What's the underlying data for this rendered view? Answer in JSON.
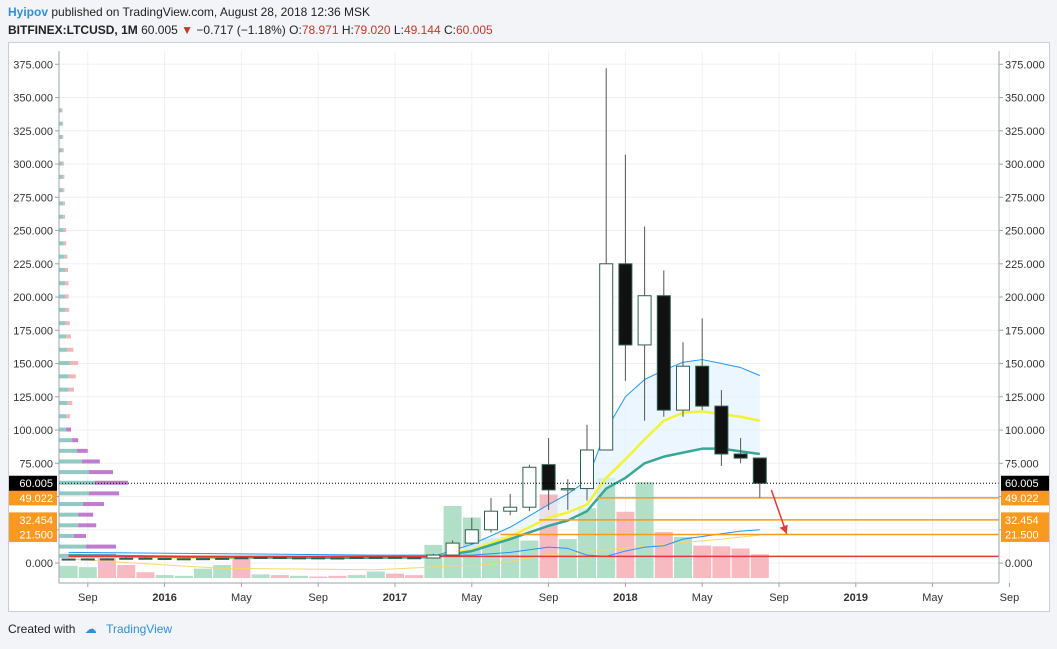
{
  "header": {
    "author": "Hyipov",
    "published_text": "published on TradingView.com, August 28, 2018 12:36 MSK",
    "symbol": "BITFINEX:LTCUSD, 1M",
    "last": "60.005",
    "change": "−0.717 (−1.18%)",
    "o_label": "O:",
    "o_value": "78.971",
    "h_label": "H:",
    "h_value": "79.020",
    "l_label": "L:",
    "l_value": "49.144",
    "c_label": "C:",
    "c_value": "60.005"
  },
  "footer": {
    "created_with": "Created with",
    "brand": "TradingView"
  },
  "colors": {
    "up_fill": "#ffffff",
    "down_fill": "#111111",
    "candle_stroke": "#2f5f4f",
    "vol_up": "#a8dcc1",
    "vol_down": "#f6b3ba",
    "ma_blue": "#2196f3",
    "ma_yellow": "#f2f23a",
    "ma_teal": "#3aa69a",
    "level_orange": "#f79a1f",
    "level_red": "#e53935",
    "arrow": "#e53935",
    "price_box": "#000000"
  },
  "chart_data": {
    "type": "candlestick",
    "ylim": [
      -15,
      385
    ],
    "y_ticks": [
      "0.000",
      "25.000",
      "50.000",
      "75.000",
      "100.000",
      "125.000",
      "150.000",
      "175.000",
      "200.000",
      "225.000",
      "250.000",
      "275.000",
      "300.000",
      "325.000",
      "350.000",
      "375.000"
    ],
    "y_tick_values": [
      0,
      25,
      50,
      75,
      100,
      125,
      150,
      175,
      200,
      225,
      250,
      275,
      300,
      325,
      350,
      375
    ],
    "x_start": "2015-08",
    "x_ticks": [
      {
        "label": "Sep",
        "m": 1,
        "bold": false
      },
      {
        "label": "2016",
        "m": 5,
        "bold": true
      },
      {
        "label": "May",
        "m": 9,
        "bold": false
      },
      {
        "label": "Sep",
        "m": 13,
        "bold": false
      },
      {
        "label": "2017",
        "m": 17,
        "bold": true
      },
      {
        "label": "May",
        "m": 21,
        "bold": false
      },
      {
        "label": "Sep",
        "m": 25,
        "bold": false
      },
      {
        "label": "2018",
        "m": 29,
        "bold": true
      },
      {
        "label": "May",
        "m": 33,
        "bold": false
      },
      {
        "label": "Sep",
        "m": 37,
        "bold": false
      },
      {
        "label": "2019",
        "m": 41,
        "bold": true
      },
      {
        "label": "May",
        "m": 45,
        "bold": false
      },
      {
        "label": "Sep",
        "m": 49,
        "bold": false
      }
    ],
    "candles": [
      {
        "m": 0,
        "o": 3.0,
        "h": 3.5,
        "l": 2.6,
        "c": 3.0
      },
      {
        "m": 1,
        "o": 3.0,
        "h": 3.3,
        "l": 2.8,
        "c": 3.1
      },
      {
        "m": 2,
        "o": 3.1,
        "h": 3.6,
        "l": 2.9,
        "c": 3.0
      },
      {
        "m": 3,
        "o": 3.0,
        "h": 4.8,
        "l": 2.9,
        "c": 3.6
      },
      {
        "m": 4,
        "o": 3.6,
        "h": 4.4,
        "l": 3.2,
        "c": 3.4
      },
      {
        "m": 5,
        "o": 3.4,
        "h": 3.8,
        "l": 3.0,
        "c": 3.1
      },
      {
        "m": 6,
        "o": 3.1,
        "h": 3.6,
        "l": 3.0,
        "c": 3.2
      },
      {
        "m": 7,
        "o": 3.2,
        "h": 3.5,
        "l": 3.0,
        "c": 3.3
      },
      {
        "m": 8,
        "o": 3.3,
        "h": 3.6,
        "l": 3.1,
        "c": 3.5
      },
      {
        "m": 9,
        "o": 3.5,
        "h": 4.6,
        "l": 3.3,
        "c": 4.0
      },
      {
        "m": 10,
        "o": 4.0,
        "h": 4.9,
        "l": 3.7,
        "c": 4.2
      },
      {
        "m": 11,
        "o": 4.2,
        "h": 4.5,
        "l": 3.7,
        "c": 3.8
      },
      {
        "m": 12,
        "o": 3.8,
        "h": 4.1,
        "l": 3.7,
        "c": 3.9
      },
      {
        "m": 13,
        "o": 3.9,
        "h": 4.1,
        "l": 3.6,
        "c": 3.8
      },
      {
        "m": 14,
        "o": 3.8,
        "h": 4.0,
        "l": 3.6,
        "c": 3.7
      },
      {
        "m": 15,
        "o": 3.7,
        "h": 4.5,
        "l": 3.6,
        "c": 4.2
      },
      {
        "m": 16,
        "o": 4.2,
        "h": 4.6,
        "l": 3.8,
        "c": 4.3
      },
      {
        "m": 17,
        "o": 4.3,
        "h": 4.6,
        "l": 3.8,
        "c": 4.0
      },
      {
        "m": 18,
        "o": 4.0,
        "h": 4.2,
        "l": 3.6,
        "c": 3.8
      },
      {
        "m": 19,
        "o": 3.8,
        "h": 7.0,
        "l": 3.7,
        "c": 6.0
      },
      {
        "m": 20,
        "o": 6.0,
        "h": 17.0,
        "l": 5.8,
        "c": 15.0
      },
      {
        "m": 21,
        "o": 15.0,
        "h": 34.0,
        "l": 14.0,
        "c": 25.0
      },
      {
        "m": 22,
        "o": 25.0,
        "h": 49.0,
        "l": 23.0,
        "c": 39.0
      },
      {
        "m": 23,
        "o": 39.0,
        "h": 52.0,
        "l": 36.0,
        "c": 42.0
      },
      {
        "m": 24,
        "o": 42.0,
        "h": 74.0,
        "l": 39.0,
        "c": 72.0
      },
      {
        "m": 25,
        "o": 74.0,
        "h": 94.0,
        "l": 40.0,
        "c": 55.0
      },
      {
        "m": 26,
        "o": 55.0,
        "h": 63.0,
        "l": 40.0,
        "c": 56.0
      },
      {
        "m": 27,
        "o": 56.0,
        "h": 104.0,
        "l": 47.0,
        "c": 85.0
      },
      {
        "m": 28,
        "o": 85.0,
        "h": 372.0,
        "l": 85.0,
        "c": 225.0
      },
      {
        "m": 29,
        "o": 225.0,
        "h": 307.0,
        "l": 137.0,
        "c": 164.0
      },
      {
        "m": 30,
        "o": 164.0,
        "h": 253.0,
        "l": 107.0,
        "c": 201.0
      },
      {
        "m": 31,
        "o": 201.0,
        "h": 220.0,
        "l": 110.0,
        "c": 115.0
      },
      {
        "m": 32,
        "o": 115.0,
        "h": 166.0,
        "l": 110.0,
        "c": 148.0
      },
      {
        "m": 33,
        "o": 148.0,
        "h": 184.0,
        "l": 115.0,
        "c": 118.0
      },
      {
        "m": 34,
        "o": 118.0,
        "h": 130.0,
        "l": 73.0,
        "c": 82.0
      },
      {
        "m": 35,
        "o": 82.0,
        "h": 94.0,
        "l": 75.0,
        "c": 78.9
      },
      {
        "m": 36,
        "o": 78.971,
        "h": 79.02,
        "l": 49.144,
        "c": 60.005
      }
    ],
    "volume": [
      {
        "m": 0,
        "v": 0.17,
        "up": true
      },
      {
        "m": 1,
        "v": 0.15,
        "up": true
      },
      {
        "m": 2,
        "v": 0.31,
        "up": false
      },
      {
        "m": 3,
        "v": 0.18,
        "up": false
      },
      {
        "m": 4,
        "v": 0.08,
        "up": false
      },
      {
        "m": 5,
        "v": 0.04,
        "up": true
      },
      {
        "m": 6,
        "v": 0.03,
        "up": true
      },
      {
        "m": 7,
        "v": 0.13,
        "up": true
      },
      {
        "m": 8,
        "v": 0.18,
        "up": true
      },
      {
        "m": 9,
        "v": 0.27,
        "up": false
      },
      {
        "m": 10,
        "v": 0.05,
        "up": true
      },
      {
        "m": 11,
        "v": 0.04,
        "up": false
      },
      {
        "m": 12,
        "v": 0.03,
        "up": true
      },
      {
        "m": 13,
        "v": 0.02,
        "up": false
      },
      {
        "m": 14,
        "v": 0.03,
        "up": false
      },
      {
        "m": 15,
        "v": 0.04,
        "up": true
      },
      {
        "m": 16,
        "v": 0.09,
        "up": true
      },
      {
        "m": 17,
        "v": 0.06,
        "up": false
      },
      {
        "m": 18,
        "v": 0.04,
        "up": false
      },
      {
        "m": 19,
        "v": 0.46,
        "up": true
      },
      {
        "m": 20,
        "v": 1.0,
        "up": true
      },
      {
        "m": 21,
        "v": 0.84,
        "up": true
      },
      {
        "m": 22,
        "v": 0.55,
        "up": true
      },
      {
        "m": 23,
        "v": 0.57,
        "up": true
      },
      {
        "m": 24,
        "v": 0.52,
        "up": true
      },
      {
        "m": 25,
        "v": 1.16,
        "up": false
      },
      {
        "m": 26,
        "v": 0.54,
        "up": true
      },
      {
        "m": 27,
        "v": 0.97,
        "up": true
      },
      {
        "m": 28,
        "v": 1.39,
        "up": true
      },
      {
        "m": 29,
        "v": 0.92,
        "up": false
      },
      {
        "m": 30,
        "v": 1.33,
        "up": true
      },
      {
        "m": 31,
        "v": 0.64,
        "up": false
      },
      {
        "m": 32,
        "v": 0.57,
        "up": true
      },
      {
        "m": 33,
        "v": 0.45,
        "up": false
      },
      {
        "m": 34,
        "v": 0.44,
        "up": false
      },
      {
        "m": 35,
        "v": 0.41,
        "up": false
      },
      {
        "m": 36,
        "v": 0.33,
        "up": false
      }
    ],
    "ma_blue": [
      [
        0,
        5
      ],
      [
        4,
        4.5
      ],
      [
        8,
        4
      ],
      [
        12,
        4
      ],
      [
        16,
        4
      ],
      [
        19,
        5
      ],
      [
        21,
        14
      ],
      [
        23,
        27
      ],
      [
        25,
        44
      ],
      [
        26,
        52
      ],
      [
        27,
        62
      ],
      [
        28,
        100
      ],
      [
        29,
        125
      ],
      [
        30,
        138
      ],
      [
        31,
        145
      ],
      [
        32,
        151
      ],
      [
        33,
        153
      ],
      [
        34,
        150
      ],
      [
        35,
        147
      ],
      [
        36,
        141
      ]
    ],
    "ma_yellow": [
      [
        0,
        5
      ],
      [
        4,
        4.5
      ],
      [
        8,
        4
      ],
      [
        12,
        4
      ],
      [
        16,
        4
      ],
      [
        19,
        4.5
      ],
      [
        21,
        10
      ],
      [
        23,
        20
      ],
      [
        25,
        34
      ],
      [
        26,
        38
      ],
      [
        27,
        44
      ],
      [
        28,
        64
      ],
      [
        29,
        78
      ],
      [
        30,
        93
      ],
      [
        31,
        107
      ],
      [
        32,
        113
      ],
      [
        33,
        114
      ],
      [
        34,
        112
      ],
      [
        35,
        110
      ],
      [
        36,
        107
      ]
    ],
    "ma_teal": [
      [
        0,
        6
      ],
      [
        4,
        5
      ],
      [
        8,
        4.5
      ],
      [
        12,
        4
      ],
      [
        16,
        4
      ],
      [
        19,
        4.5
      ],
      [
        21,
        9
      ],
      [
        23,
        18
      ],
      [
        25,
        28
      ],
      [
        26,
        32
      ],
      [
        27,
        39
      ],
      [
        28,
        56
      ],
      [
        29,
        64
      ],
      [
        30,
        75
      ],
      [
        31,
        80
      ],
      [
        32,
        83
      ],
      [
        33,
        86
      ],
      [
        34,
        86
      ],
      [
        35,
        84
      ],
      [
        36,
        82
      ]
    ],
    "ma_lower_blue": [
      [
        0,
        8
      ],
      [
        8,
        7
      ],
      [
        16,
        6
      ],
      [
        19,
        6
      ],
      [
        21,
        6
      ],
      [
        23,
        8
      ],
      [
        25,
        12
      ],
      [
        26,
        11
      ],
      [
        27,
        6
      ],
      [
        28,
        5
      ],
      [
        29,
        9
      ],
      [
        30,
        12
      ],
      [
        31,
        13
      ],
      [
        32,
        18
      ],
      [
        33,
        20
      ],
      [
        34,
        22
      ],
      [
        35,
        24
      ],
      [
        36,
        25
      ]
    ],
    "ma_lower_yellow": [
      [
        0,
        3
      ],
      [
        8,
        -4
      ],
      [
        16,
        -5
      ],
      [
        19,
        -3
      ],
      [
        22,
        -1
      ],
      [
        25,
        6
      ],
      [
        28,
        10
      ],
      [
        31,
        14
      ],
      [
        34,
        18
      ],
      [
        36,
        21
      ]
    ],
    "levels": [
      {
        "value": 49.022,
        "label": "49.022",
        "color": "#f79a1f",
        "from_m": 27.5
      },
      {
        "value": 32.454,
        "label": "32.454",
        "color": "#f79a1f",
        "from_m": 24.5
      },
      {
        "value": 21.5,
        "label": "21.500",
        "color": "#f79a1f",
        "from_m": 22.5
      },
      {
        "value": 5,
        "label": "",
        "color": "#e53935",
        "from_m": 0
      }
    ],
    "last_price": {
      "value": 60.005,
      "label": "60.005"
    },
    "arrow": {
      "from_m": 36.6,
      "from_v": 55,
      "to_m": 37.4,
      "to_v": 22
    },
    "volume_profile": [
      {
        "p": 340,
        "a": 0.04,
        "b": 0.02
      },
      {
        "p": 330,
        "a": 0.05,
        "b": 0.02
      },
      {
        "p": 320,
        "a": 0.05,
        "b": 0.02
      },
      {
        "p": 310,
        "a": 0.05,
        "b": 0.03
      },
      {
        "p": 300,
        "a": 0.05,
        "b": 0.03
      },
      {
        "p": 290,
        "a": 0.06,
        "b": 0.03
      },
      {
        "p": 280,
        "a": 0.06,
        "b": 0.03
      },
      {
        "p": 270,
        "a": 0.07,
        "b": 0.03
      },
      {
        "p": 260,
        "a": 0.07,
        "b": 0.03
      },
      {
        "p": 250,
        "a": 0.08,
        "b": 0.04
      },
      {
        "p": 240,
        "a": 0.08,
        "b": 0.04
      },
      {
        "p": 230,
        "a": 0.09,
        "b": 0.05
      },
      {
        "p": 220,
        "a": 0.1,
        "b": 0.05
      },
      {
        "p": 210,
        "a": 0.1,
        "b": 0.06
      },
      {
        "p": 200,
        "a": 0.1,
        "b": 0.06
      },
      {
        "p": 190,
        "a": 0.11,
        "b": 0.06
      },
      {
        "p": 180,
        "a": 0.11,
        "b": 0.07
      },
      {
        "p": 170,
        "a": 0.12,
        "b": 0.08
      },
      {
        "p": 160,
        "a": 0.14,
        "b": 0.1
      },
      {
        "p": 150,
        "a": 0.18,
        "b": 0.14
      },
      {
        "p": 140,
        "a": 0.16,
        "b": 0.12
      },
      {
        "p": 130,
        "a": 0.15,
        "b": 0.1
      },
      {
        "p": 120,
        "a": 0.14,
        "b": 0.08
      },
      {
        "p": 110,
        "a": 0.12,
        "b": 0.06
      },
      {
        "p": 100,
        "a": 0.12,
        "b": 0.08
      },
      {
        "p": 92,
        "a": 0.22,
        "b": 0.1
      },
      {
        "p": 84,
        "a": 0.3,
        "b": 0.18
      },
      {
        "p": 76,
        "a": 0.38,
        "b": 0.3
      },
      {
        "p": 68,
        "a": 0.5,
        "b": 0.4
      },
      {
        "p": 60,
        "a": 0.6,
        "b": 0.55
      },
      {
        "p": 52,
        "a": 0.5,
        "b": 0.5
      },
      {
        "p": 44,
        "a": 0.4,
        "b": 0.35
      },
      {
        "p": 36,
        "a": 0.32,
        "b": 0.25
      },
      {
        "p": 28,
        "a": 0.32,
        "b": 0.3
      },
      {
        "p": 20,
        "a": 0.25,
        "b": 0.2
      },
      {
        "p": 12,
        "a": 0.45,
        "b": 0.5
      },
      {
        "p": 5,
        "a": 0.5,
        "b": 0.45
      }
    ]
  }
}
